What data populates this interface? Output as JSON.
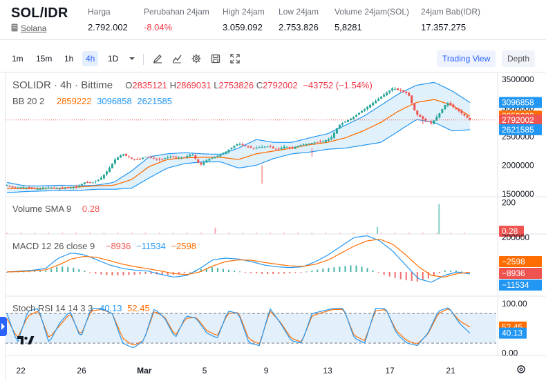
{
  "ticker": {
    "pair": "SOL/IDR",
    "coin": "Solana",
    "stats": [
      {
        "label": "Harga",
        "value": "2.792.002",
        "negative": false
      },
      {
        "label": "Perubahan 24jam",
        "value": "-8.04%",
        "negative": true
      },
      {
        "label": "High 24jam",
        "value": "3.059.092",
        "negative": false
      },
      {
        "label": "Low 24jam",
        "value": "2.753.826",
        "negative": false
      },
      {
        "label": "Volume 24jam(SOL)",
        "value": "5,8281",
        "negative": false
      },
      {
        "label": "24jam Bab(IDR)",
        "value": "17.357.275",
        "negative": false
      }
    ]
  },
  "toolbar": {
    "timeframes": [
      "1m",
      "15m",
      "1h",
      "4h",
      "1D"
    ],
    "active_timeframe": "4h",
    "icons": [
      "chevron-down-icon",
      "draw-icon",
      "indicator-icon",
      "gear-icon",
      "save-icon",
      "fullscreen-icon"
    ],
    "trading_view": "Trading View",
    "depth": "Depth"
  },
  "legend": {
    "main": {
      "symbol": "SOLIDR · 4h · Bittime",
      "o_label": "O",
      "o": "2835121",
      "h_label": "H",
      "h": "2869031",
      "l_label": "L",
      "l": "2753826",
      "c_label": "C",
      "c": "2792002",
      "change": "−43752 (−1.54%)"
    },
    "bb": {
      "label": "BB 20 2",
      "basis": "2859222",
      "upper": "3096858",
      "lower": "2621585"
    },
    "volume": {
      "label": "Volume SMA 9",
      "value": "0.28"
    },
    "macd": {
      "label": "MACD 12 26 close 9",
      "hist": "−8936",
      "macd": "−11534",
      "signal": "−2598"
    },
    "stoch": {
      "label": "Stoch RSI 14 14 3 3",
      "k": "40.13",
      "d": "52.45"
    }
  },
  "colors": {
    "up": "#26a69a",
    "down": "#ef5350",
    "bb_band": "#2196f3",
    "bb_basis": "#ff6d00",
    "bb_fill": "#dceefb",
    "accent": "#2962ff",
    "stoch_fill": "#e3f0fb"
  },
  "chart_data": [
    {
      "type": "candlestick",
      "title": "SOLIDR · 4h · Bittime",
      "x_ticks": [
        "22",
        "26",
        "Mar",
        "5",
        "9",
        "13",
        "17",
        "21"
      ],
      "y_ticks": [
        1500000,
        2000000,
        2500000,
        3000000,
        3500000
      ],
      "ylim": [
        1450000,
        3550000
      ],
      "last_close": 2792002,
      "series": [
        {
          "name": "Price close (approx.)",
          "values": [
            1650000,
            1600000,
            1620000,
            1600000,
            1580000,
            1610000,
            1600000,
            1590000,
            1610000,
            1620000,
            1700000,
            1690000,
            1750000,
            1900000,
            2100000,
            2200000,
            2120000,
            2100000,
            2150000,
            2120000,
            2100000,
            2150000,
            2130000,
            2140000,
            2200000,
            2000000,
            2100000,
            2150000,
            2200000,
            2300000,
            2380000,
            2330000,
            2300000,
            2320000,
            2330000,
            2270000,
            2330000,
            2300000,
            2350000,
            2380000,
            2400000,
            2420000,
            2480000,
            2700000,
            2780000,
            2850000,
            2950000,
            3050000,
            3150000,
            3250000,
            3350000,
            3300000,
            3250000,
            2900000,
            2800000,
            2730000,
            2900000,
            3100000,
            3000000,
            2900000,
            2792002
          ]
        },
        {
          "name": "BB 20 2 upper",
          "values": [
            1700000,
            1640000,
            1640000,
            1650000,
            1640000,
            1650000,
            1700000,
            1900000,
            2150000,
            2200000,
            2220000,
            2200000,
            2190000,
            2300000,
            2450000,
            2400000,
            2400000,
            2480000,
            2550000,
            2700000,
            2850000,
            3050000,
            3250000,
            3400000,
            3450000,
            3300000,
            3096858
          ]
        },
        {
          "name": "BB 20 2 basis",
          "values": [
            1600000,
            1590000,
            1600000,
            1600000,
            1620000,
            1640000,
            1650000,
            1750000,
            1980000,
            2100000,
            2130000,
            2140000,
            2140000,
            2100000,
            2200000,
            2250000,
            2300000,
            2360000,
            2400000,
            2480000,
            2600000,
            2750000,
            2950000,
            3100000,
            3150000,
            3050000,
            2859222
          ]
        },
        {
          "name": "BB 20 2 lower",
          "values": [
            1520000,
            1540000,
            1550000,
            1560000,
            1560000,
            1580000,
            1580000,
            1600000,
            1780000,
            1950000,
            2030000,
            2060000,
            2060000,
            1950000,
            2000000,
            2120000,
            2200000,
            2230000,
            2280000,
            2300000,
            2350000,
            2400000,
            2600000,
            2800000,
            2750000,
            2600000,
            2621585
          ]
        }
      ]
    },
    {
      "type": "bar",
      "title": "Volume SMA 9",
      "y_ticks": [
        200
      ],
      "ylim": [
        0,
        220
      ],
      "last_value": 0.28,
      "spikes": [
        {
          "x_index": 27,
          "value": 40
        },
        {
          "x_index": 48,
          "value": 45
        },
        {
          "x_index": 56,
          "value": 190
        }
      ]
    },
    {
      "type": "line",
      "title": "MACD 12 26 close 9",
      "y_ticks": [
        200000
      ],
      "ylim": [
        -140000,
        220000
      ],
      "series": [
        {
          "name": "MACD",
          "last": -11534
        },
        {
          "name": "Signal",
          "last": -2598
        },
        {
          "name": "Histogram",
          "last": -8936
        }
      ]
    },
    {
      "type": "line",
      "title": "Stoch RSI 14 14 3 3",
      "y_ticks": [
        0.0,
        100.0
      ],
      "y_tick_labels": [
        "0.00",
        "100.00"
      ],
      "ylim": [
        -5,
        115
      ],
      "bands": [
        20,
        80
      ],
      "series": [
        {
          "name": "K",
          "last": 40.13,
          "values": [
            80,
            20,
            85,
            90,
            20,
            60,
            85,
            30,
            90,
            90,
            80,
            20,
            10,
            25,
            90,
            70,
            30,
            75,
            70,
            40,
            30,
            85,
            80,
            20,
            15,
            90,
            60,
            25,
            20,
            80,
            85,
            90,
            90,
            30,
            20,
            90,
            90,
            40,
            20,
            15,
            40,
            85,
            92,
            60,
            40.13
          ]
        },
        {
          "name": "D",
          "last": 52.45,
          "values": [
            70,
            30,
            75,
            85,
            30,
            55,
            80,
            35,
            85,
            88,
            80,
            30,
            15,
            25,
            85,
            72,
            35,
            70,
            72,
            45,
            35,
            80,
            82,
            28,
            18,
            85,
            62,
            30,
            22,
            75,
            82,
            88,
            88,
            35,
            25,
            85,
            88,
            45,
            25,
            18,
            38,
            80,
            90,
            65,
            52.45
          ]
        }
      ]
    }
  ]
}
